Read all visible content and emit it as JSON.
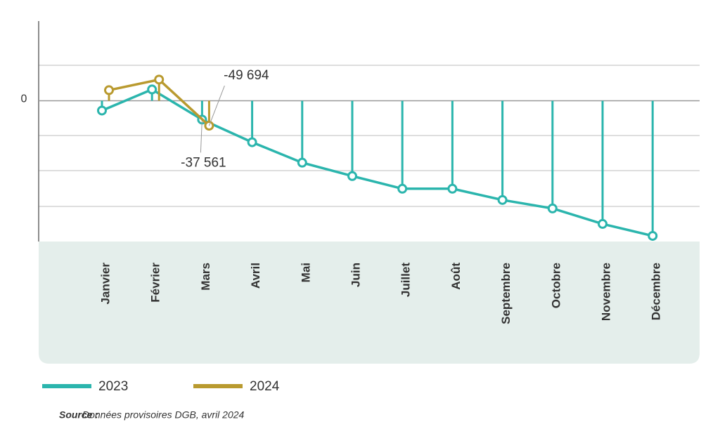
{
  "chart_data": {
    "type": "line",
    "categories": [
      "Janvier",
      "Février",
      "Mars",
      "Avril",
      "Mai",
      "Juin",
      "Juillet",
      "Août",
      "Septembre",
      "Octobre",
      "Novembre",
      "Décembre"
    ],
    "series": [
      {
        "name": "2023",
        "color": "#2bb5ad",
        "values": [
          -19600,
          22400,
          -37561,
          -82600,
          -123200,
          -149800,
          -175000,
          -175000,
          -197400,
          -214200,
          -245000,
          -268800
        ],
        "value_labels": [
          null,
          null,
          "-37 561",
          null,
          null,
          null,
          null,
          null,
          null,
          null,
          null,
          null
        ]
      },
      {
        "name": "2024",
        "color": "#b99a2f",
        "values": [
          21000,
          42000,
          -49694,
          null,
          null,
          null,
          null,
          null,
          null,
          null,
          null,
          null
        ],
        "value_labels": [
          null,
          null,
          "-49 694",
          null,
          null,
          null,
          null,
          null,
          null,
          null,
          null,
          null
        ]
      }
    ],
    "ylim": [
      -280000,
      150000
    ],
    "yticks": [
      0
    ],
    "grid": true,
    "source_label": "Source :",
    "source_text": "Données provisoires DGB, avril 2024"
  }
}
